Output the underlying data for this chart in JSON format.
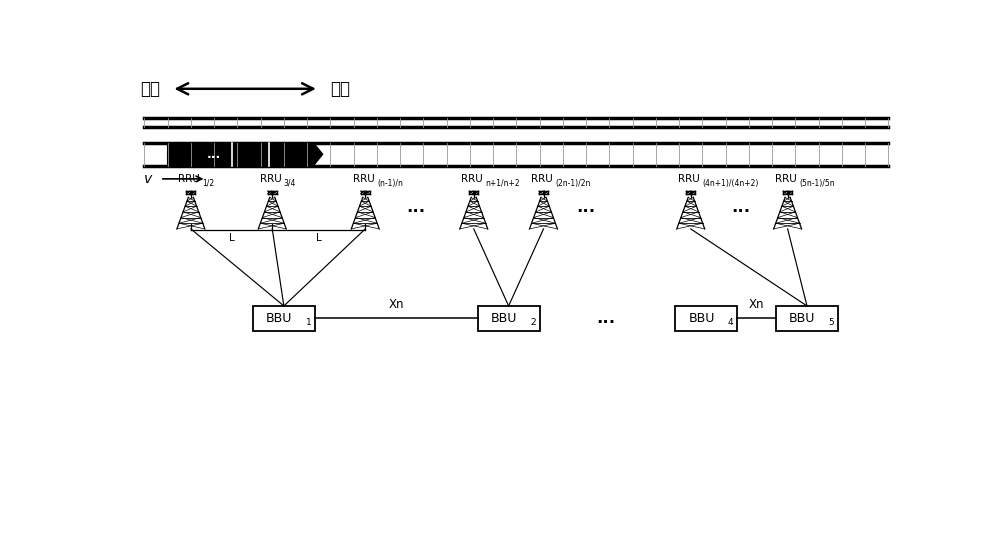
{
  "bg_color": "#ffffff",
  "fig_width": 10.0,
  "fig_height": 5.41,
  "title_uplink": "上行",
  "title_downlink": "下行",
  "v_label": "v",
  "rru_subs": [
    "1/2",
    "3/4",
    "(n-1)/n",
    "n+1/n+2",
    "(2n-1)/2n",
    "(4n+1)/(4n+2)",
    "(5n-1)/5n"
  ],
  "bbu_subs": [
    "1",
    "2",
    "4",
    "5"
  ],
  "xn_label": "Xn",
  "L_label": "L",
  "dots": "..."
}
